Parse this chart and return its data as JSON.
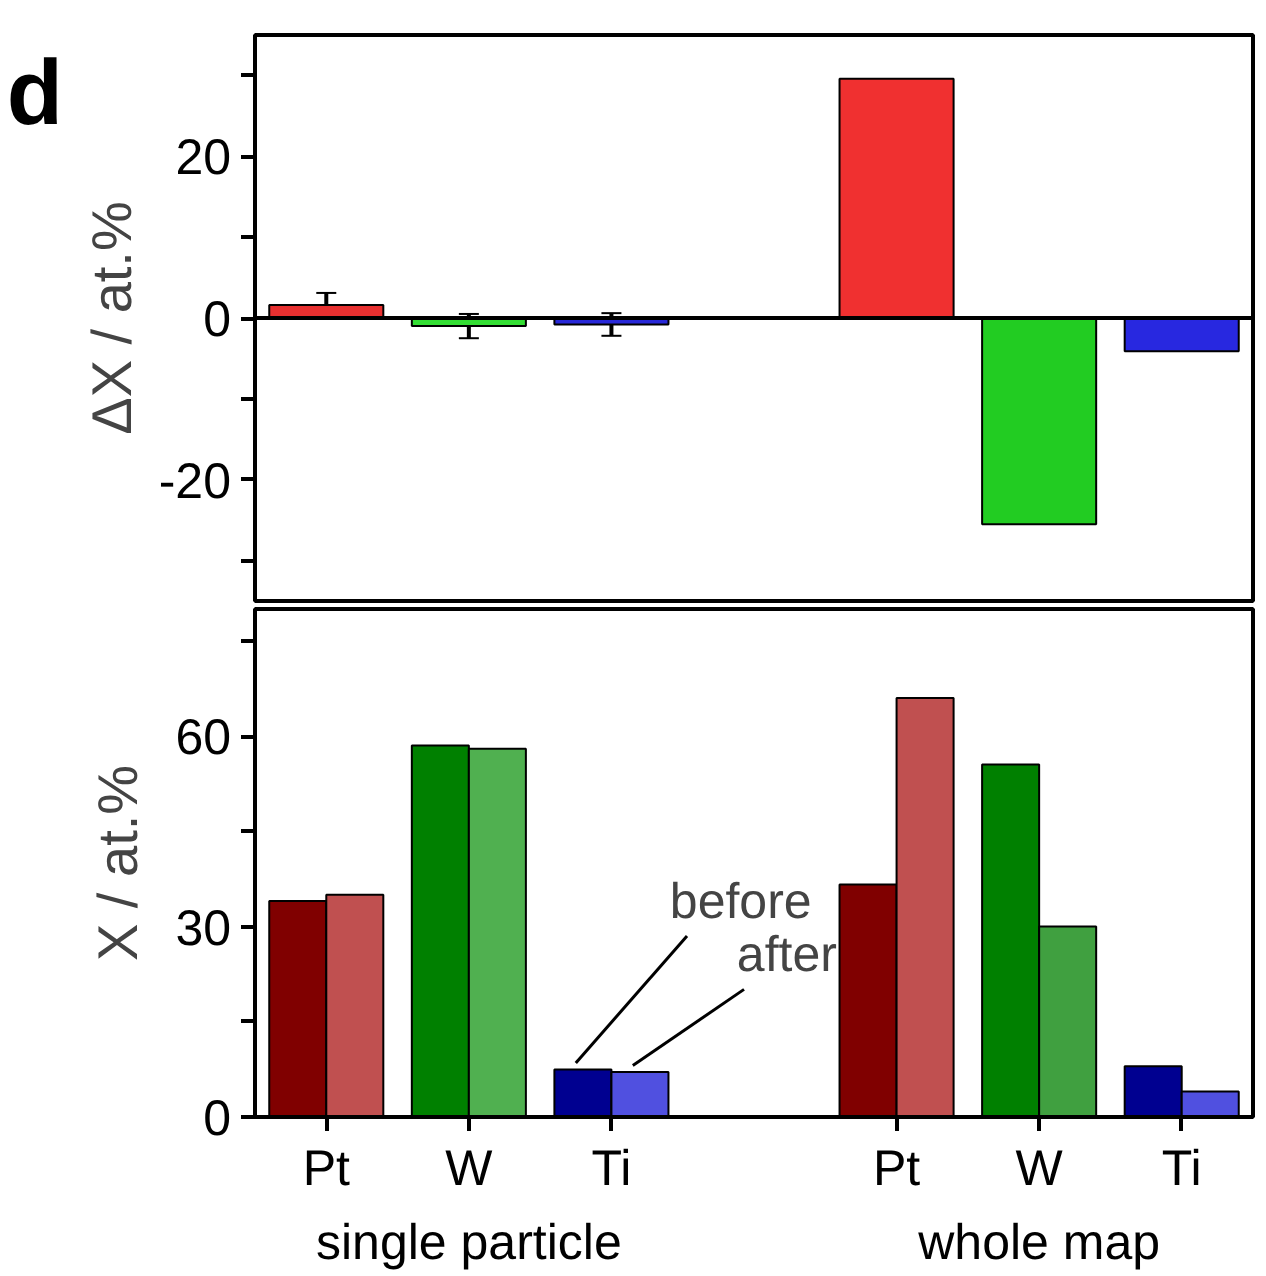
{
  "chart_data": [
    {
      "type": "bar",
      "ylabel": "ΔX / at.%",
      "categories": [
        null,
        null,
        null,
        null,
        null,
        null,
        null
      ],
      "values": [
        1.6,
        -1.0,
        -0.8,
        null,
        29.6,
        -25.5,
        -4.1
      ],
      "errors": [
        1.5,
        1.5,
        1.4,
        null,
        null,
        null,
        null
      ],
      "colors": [
        "#e83030",
        "#33dd33",
        "#2828d8",
        "#ffffff",
        "#f03030",
        "#22cc22",
        "#2828e0"
      ],
      "ylim": [
        -35,
        35
      ],
      "yticks": [
        -20,
        {
          "value": -30,
          "label": null
        },
        {
          "value": -10,
          "label": null
        },
        0,
        {
          "value": 10,
          "label": null
        },
        20,
        {
          "value": 30,
          "label": null
        }
      ],
      "ref_lines": [
        {
          "axis": "y",
          "value": 0
        }
      ],
      "tick_labels": "y",
      "grid": false,
      "annotations": [
        "d"
      ]
    },
    {
      "type": "bar",
      "ylabel": "X / at.%",
      "categories": [
        "Pt",
        "W",
        "Ti",
        null,
        "Pt",
        "W",
        "Ti"
      ],
      "series": [
        {
          "name": "before",
          "colors": [
            "#800000",
            "#008000",
            "#000090",
            "#ffffff",
            "#800000",
            "#008000",
            "#000090"
          ],
          "values": [
            34.0,
            58.5,
            7.5,
            null,
            36.6,
            55.5,
            8.0
          ]
        },
        {
          "name": "after",
          "colors": [
            "#c05050",
            "#50b050",
            "#5050e0",
            "#ffffff",
            "#c05050",
            "#40a040",
            "#5050e0"
          ],
          "values": [
            35.0,
            58.0,
            7.1,
            null,
            66.0,
            30.0,
            4.0
          ]
        }
      ],
      "ylim": [
        0,
        80
      ],
      "yticks": [
        0,
        {
          "value": 15,
          "label": null
        },
        30,
        {
          "value": 45,
          "label": null
        },
        60,
        {
          "value": 75,
          "label": null
        }
      ],
      "grid": false,
      "annotations": [
        "single particle",
        "whole map"
      ]
    }
  ]
}
